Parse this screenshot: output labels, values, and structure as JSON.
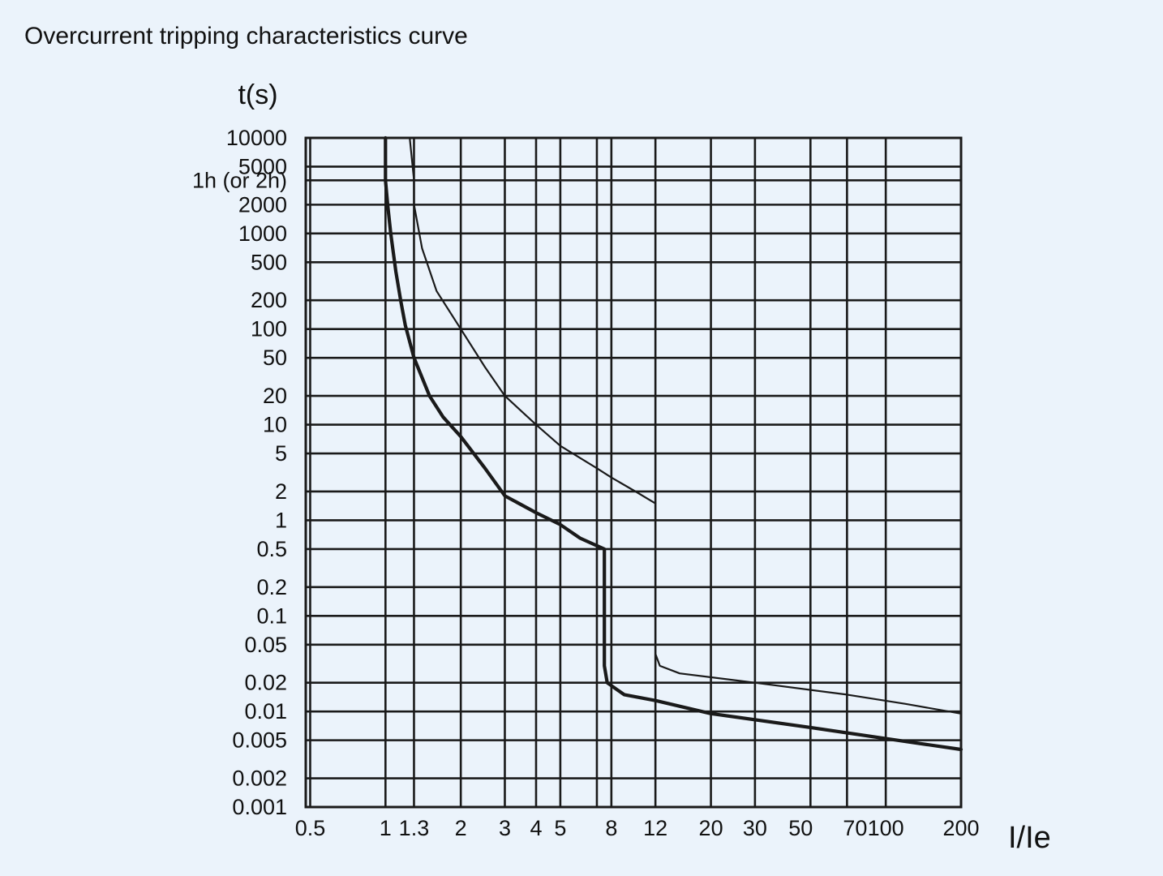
{
  "chart_data": {
    "type": "line",
    "title": "Overcurrent tripping characteristics curve",
    "xlabel": "I/Ie",
    "ylabel": "t(s)",
    "x_scale": "log",
    "y_scale": "log",
    "xlim": [
      0.48,
      200
    ],
    "ylim": [
      0.001,
      10000
    ],
    "grid": true,
    "x_ticks": [
      {
        "value": 0.5,
        "label": "0.5"
      },
      {
        "value": 1,
        "label": "1"
      },
      {
        "value": 1.3,
        "label": "1.3"
      },
      {
        "value": 2,
        "label": "2"
      },
      {
        "value": 3,
        "label": "3"
      },
      {
        "value": 4,
        "label": "4"
      },
      {
        "value": 5,
        "label": "5"
      },
      {
        "value": 8,
        "label": "8"
      },
      {
        "value": 12,
        "label": "12"
      },
      {
        "value": 20,
        "label": "20"
      },
      {
        "value": 30,
        "label": "30"
      },
      {
        "value": 50,
        "label": "50"
      },
      {
        "value": 70,
        "label": "70"
      },
      {
        "value": 100,
        "label": "100"
      },
      {
        "value": 200,
        "label": "200"
      }
    ],
    "x_gridlines": [
      0.5,
      1,
      1.3,
      2,
      3,
      4,
      5,
      7,
      8,
      12,
      20,
      30,
      50,
      70,
      100,
      200
    ],
    "y_ticks": [
      {
        "value": 10000,
        "label": "10000"
      },
      {
        "value": 5000,
        "label": "5000"
      },
      {
        "value": 3600,
        "label": "1h (or 2h)"
      },
      {
        "value": 2000,
        "label": "2000"
      },
      {
        "value": 1000,
        "label": "1000"
      },
      {
        "value": 500,
        "label": "500"
      },
      {
        "value": 200,
        "label": "200"
      },
      {
        "value": 100,
        "label": "100"
      },
      {
        "value": 50,
        "label": "50"
      },
      {
        "value": 20,
        "label": "20"
      },
      {
        "value": 10,
        "label": "10"
      },
      {
        "value": 5,
        "label": "5"
      },
      {
        "value": 2,
        "label": "2"
      },
      {
        "value": 1,
        "label": "1"
      },
      {
        "value": 0.5,
        "label": "0.5"
      },
      {
        "value": 0.2,
        "label": "0.2"
      },
      {
        "value": 0.1,
        "label": "0.1"
      },
      {
        "value": 0.05,
        "label": "0.05"
      },
      {
        "value": 0.02,
        "label": "0.02"
      },
      {
        "value": 0.01,
        "label": "0.01"
      },
      {
        "value": 0.005,
        "label": "0.005"
      },
      {
        "value": 0.002,
        "label": "0.002"
      },
      {
        "value": 0.001,
        "label": "0.001"
      }
    ],
    "series": [
      {
        "style": "thick",
        "points": [
          [
            1.0,
            10000
          ],
          [
            1.0,
            3600
          ],
          [
            1.02,
            2000
          ],
          [
            1.05,
            1000
          ],
          [
            1.1,
            400
          ],
          [
            1.15,
            200
          ],
          [
            1.2,
            110
          ],
          [
            1.3,
            50
          ],
          [
            1.5,
            20
          ],
          [
            1.7,
            12
          ],
          [
            2.0,
            7.5
          ],
          [
            2.5,
            3.5
          ],
          [
            3.0,
            1.8
          ],
          [
            4.0,
            1.2
          ],
          [
            5.0,
            0.9
          ],
          [
            6.0,
            0.65
          ],
          [
            7.5,
            0.5
          ],
          [
            7.5,
            0.03
          ],
          [
            7.7,
            0.02
          ],
          [
            9.0,
            0.015
          ],
          [
            12.0,
            0.013
          ],
          [
            20.0,
            0.0095
          ],
          [
            50.0,
            0.0068
          ],
          [
            100.0,
            0.0052
          ],
          [
            200.0,
            0.004
          ]
        ]
      },
      {
        "style": "thin",
        "points": [
          [
            1.25,
            10000
          ],
          [
            1.3,
            3600
          ],
          [
            1.3,
            2000
          ],
          [
            1.4,
            700
          ],
          [
            1.6,
            250
          ],
          [
            2.0,
            100
          ],
          [
            2.5,
            40
          ],
          [
            3.0,
            20
          ],
          [
            4.0,
            10
          ],
          [
            5.0,
            6
          ],
          [
            7.0,
            3.5
          ],
          [
            8.0,
            2.8
          ],
          [
            10.0,
            2.0
          ],
          [
            12.0,
            1.5
          ]
        ]
      },
      {
        "style": "thin",
        "points": [
          [
            12.0,
            0.04
          ],
          [
            12.5,
            0.03
          ],
          [
            15.0,
            0.025
          ],
          [
            30.0,
            0.02
          ],
          [
            70.0,
            0.015
          ],
          [
            120.0,
            0.012
          ],
          [
            200.0,
            0.0095
          ]
        ]
      },
      {
        "style": "thin",
        "points": [
          [
            1.0,
            3600
          ],
          [
            1.3,
            3600
          ]
        ]
      }
    ]
  }
}
